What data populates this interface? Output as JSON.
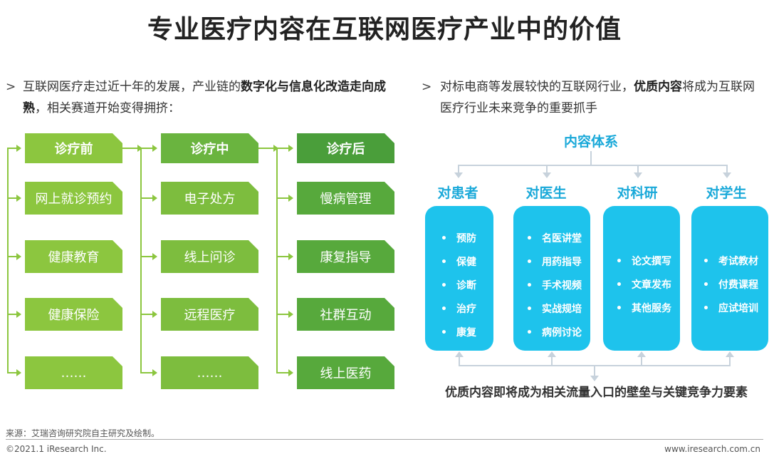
{
  "title": "专业医疗内容在互联网医疗产业中的价值",
  "left_bullet": {
    "arrow": ">",
    "text_pre": "互联网医疗走过近十年的发展，产业链的",
    "text_bold": "数字化与信息化改造走向成熟",
    "text_post": "，相关赛道开始变得拥挤："
  },
  "right_bullet": {
    "arrow": ">",
    "text_pre": "对标电商等发展较快的互联网行业，",
    "text_bold": "优质内容",
    "text_post": "将成为互联网医疗行业未来竞争的重要抓手"
  },
  "flow": {
    "columns": [
      {
        "header": "诊疗前",
        "items": [
          "网上就诊预约",
          "健康教育",
          "健康保险",
          "……"
        ]
      },
      {
        "header": "诊疗中",
        "items": [
          "电子处方",
          "线上问诊",
          "远程医疗",
          "……"
        ]
      },
      {
        "header": "诊疗后",
        "items": [
          "慢病管理",
          "康复指导",
          "社群互动",
          "线上医药"
        ]
      }
    ],
    "colors": {
      "light": "#8cc63f",
      "mid": "#6ab43f",
      "dark": "#4a9e3a"
    }
  },
  "content_system": {
    "title": "内容体系",
    "categories": [
      {
        "label": "对患者",
        "items": [
          "预防",
          "保健",
          "诊断",
          "治疗",
          "康复"
        ]
      },
      {
        "label": "对医生",
        "items": [
          "名医讲堂",
          "用药指导",
          "手术视频",
          "实战规培",
          "病例讨论"
        ]
      },
      {
        "label": "对科研",
        "items": [
          "论文撰写",
          "文章发布",
          "其他服务"
        ]
      },
      {
        "label": "对学生",
        "items": [
          "考试教材",
          "付费课程",
          "应试培训"
        ]
      }
    ],
    "bullet_char": "•",
    "accent_color": "#1ec3ec"
  },
  "conclusion": "优质内容即将成为相关流量入口的壁垒与关键竞争力要素",
  "footer": {
    "source": "来源：艾瑞咨询研究院自主研究及绘制。",
    "copyright": "©2021.1 iResearch Inc.",
    "website": "www.iresearch.com.cn"
  }
}
